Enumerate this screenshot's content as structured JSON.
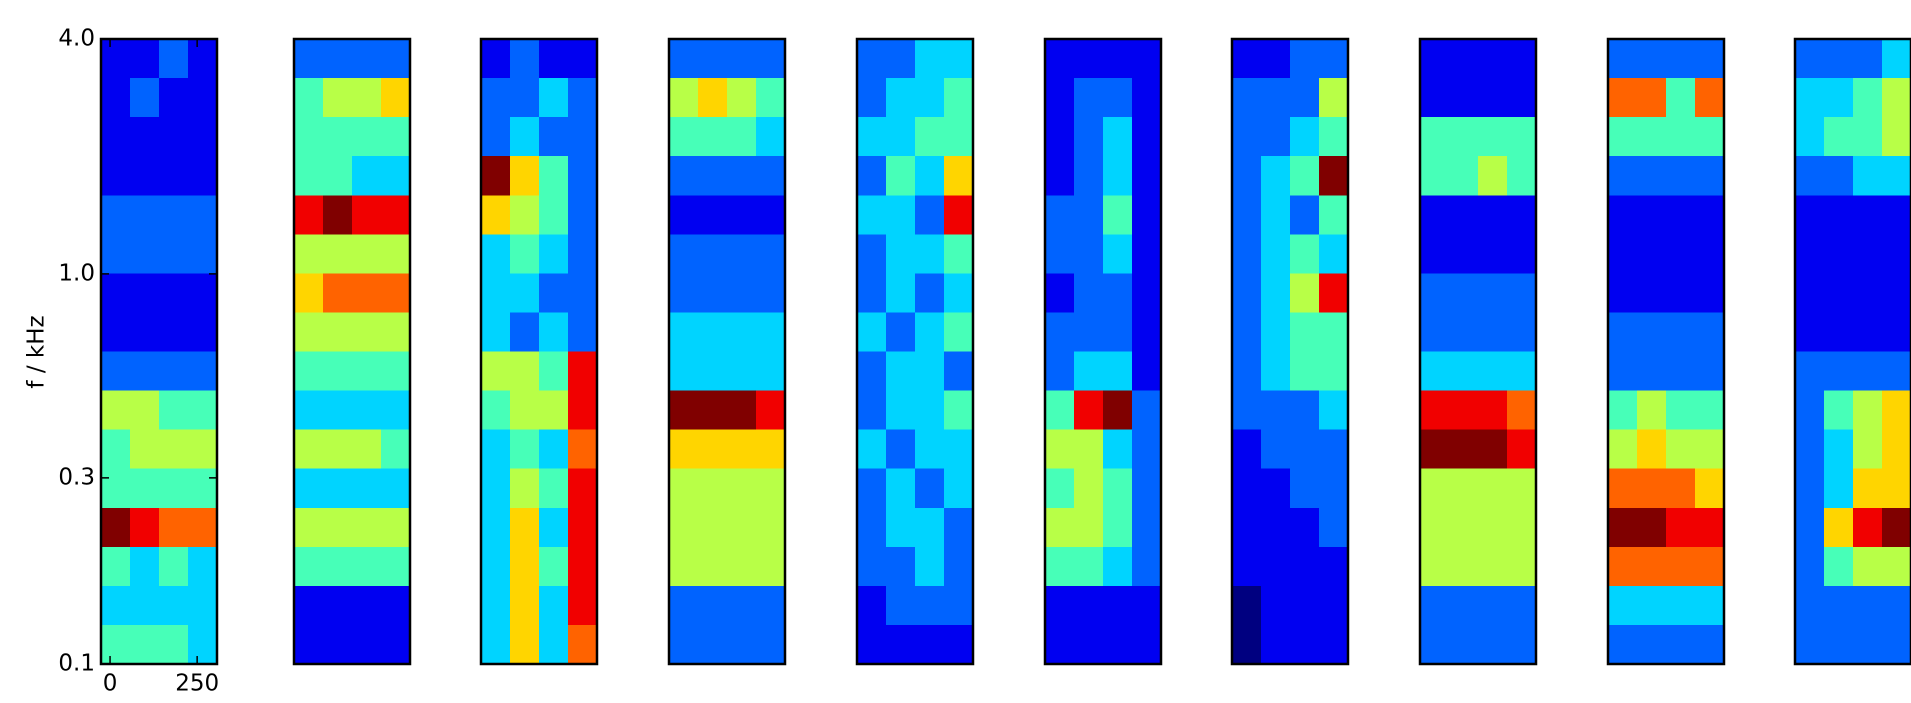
{
  "chart_data": {
    "type": "heatmap",
    "ylabel": "f / kHz",
    "ylog": true,
    "colormap": "jet",
    "zlim": [
      0,
      9
    ],
    "ylim": [
      0.1,
      4
    ],
    "yticks": [
      0.1,
      0.3,
      {
        "value": 1,
        "label": "1.0"
      },
      {
        "value": 4,
        "label": "4.0"
      }
    ],
    "xlim": [
      -26,
      307
    ],
    "xticks": [
      0,
      250
    ],
    "panels": [
      {
        "values": [
          [
            1,
            1,
            2,
            1
          ],
          [
            1,
            2,
            1,
            1
          ],
          [
            1,
            1,
            1,
            1
          ],
          [
            1,
            1,
            1,
            1
          ],
          [
            2,
            2,
            2,
            2
          ],
          [
            2,
            2,
            2,
            2
          ],
          [
            1,
            1,
            1,
            1
          ],
          [
            1,
            1,
            1,
            1
          ],
          [
            2,
            2,
            2,
            2
          ],
          [
            5,
            5,
            4,
            4
          ],
          [
            4,
            5,
            5,
            5
          ],
          [
            4,
            4,
            4,
            4
          ],
          [
            9,
            8,
            7,
            7
          ],
          [
            4,
            3,
            4,
            3
          ],
          [
            3,
            3,
            3,
            3
          ],
          [
            4,
            4,
            4,
            3
          ]
        ]
      },
      {
        "values": [
          [
            2,
            2,
            2,
            2
          ],
          [
            4,
            5,
            5,
            6
          ],
          [
            4,
            4,
            4,
            4
          ],
          [
            4,
            4,
            3,
            3
          ],
          [
            8,
            9,
            8,
            8
          ],
          [
            5,
            5,
            5,
            5
          ],
          [
            6,
            7,
            7,
            7
          ],
          [
            5,
            5,
            5,
            5
          ],
          [
            4,
            4,
            4,
            4
          ],
          [
            3,
            3,
            3,
            3
          ],
          [
            5,
            5,
            5,
            4
          ],
          [
            3,
            3,
            3,
            3
          ],
          [
            5,
            5,
            5,
            5
          ],
          [
            4,
            4,
            4,
            4
          ],
          [
            1,
            1,
            1,
            1
          ],
          [
            1,
            1,
            1,
            1
          ]
        ]
      },
      {
        "values": [
          [
            1,
            2,
            1,
            1
          ],
          [
            2,
            2,
            3,
            2
          ],
          [
            2,
            3,
            2,
            2
          ],
          [
            9,
            6,
            4,
            2
          ],
          [
            6,
            5,
            4,
            2
          ],
          [
            3,
            4,
            3,
            2
          ],
          [
            3,
            3,
            2,
            2
          ],
          [
            3,
            2,
            3,
            2
          ],
          [
            5,
            5,
            4,
            8
          ],
          [
            4,
            5,
            5,
            8
          ],
          [
            3,
            4,
            3,
            7
          ],
          [
            3,
            5,
            4,
            8
          ],
          [
            3,
            6,
            3,
            8
          ],
          [
            3,
            6,
            4,
            8
          ],
          [
            3,
            6,
            3,
            8
          ],
          [
            3,
            6,
            3,
            7
          ]
        ]
      },
      {
        "values": [
          [
            2,
            2,
            2,
            2
          ],
          [
            5,
            6,
            5,
            4
          ],
          [
            4,
            4,
            4,
            3
          ],
          [
            2,
            2,
            2,
            2
          ],
          [
            1,
            1,
            1,
            1
          ],
          [
            2,
            2,
            2,
            2
          ],
          [
            2,
            2,
            2,
            2
          ],
          [
            3,
            3,
            3,
            3
          ],
          [
            3,
            3,
            3,
            3
          ],
          [
            9,
            9,
            9,
            8
          ],
          [
            6,
            6,
            6,
            6
          ],
          [
            5,
            5,
            5,
            5
          ],
          [
            5,
            5,
            5,
            5
          ],
          [
            5,
            5,
            5,
            5
          ],
          [
            2,
            2,
            2,
            2
          ],
          [
            2,
            2,
            2,
            2
          ]
        ]
      },
      {
        "values": [
          [
            2,
            2,
            3,
            3
          ],
          [
            2,
            3,
            3,
            4
          ],
          [
            3,
            3,
            4,
            4
          ],
          [
            2,
            4,
            3,
            6
          ],
          [
            3,
            3,
            2,
            8
          ],
          [
            2,
            3,
            3,
            4
          ],
          [
            2,
            3,
            2,
            3
          ],
          [
            3,
            2,
            3,
            4
          ],
          [
            2,
            3,
            3,
            2
          ],
          [
            2,
            3,
            3,
            4
          ],
          [
            3,
            2,
            3,
            3
          ],
          [
            2,
            3,
            2,
            3
          ],
          [
            2,
            3,
            3,
            2
          ],
          [
            2,
            2,
            3,
            2
          ],
          [
            1,
            2,
            2,
            2
          ],
          [
            1,
            1,
            1,
            1
          ]
        ]
      },
      {
        "values": [
          [
            1,
            1,
            1,
            1
          ],
          [
            1,
            2,
            2,
            1
          ],
          [
            1,
            2,
            3,
            1
          ],
          [
            1,
            2,
            3,
            1
          ],
          [
            2,
            2,
            4,
            1
          ],
          [
            2,
            2,
            3,
            1
          ],
          [
            1,
            2,
            2,
            1
          ],
          [
            2,
            2,
            2,
            1
          ],
          [
            2,
            3,
            3,
            1
          ],
          [
            4,
            8,
            9,
            2
          ],
          [
            5,
            5,
            3,
            2
          ],
          [
            4,
            5,
            4,
            2
          ],
          [
            5,
            5,
            4,
            2
          ],
          [
            4,
            4,
            3,
            2
          ],
          [
            1,
            1,
            1,
            1
          ],
          [
            1,
            1,
            1,
            1
          ]
        ]
      },
      {
        "values": [
          [
            1,
            1,
            2,
            2
          ],
          [
            2,
            2,
            2,
            5
          ],
          [
            2,
            2,
            3,
            4
          ],
          [
            2,
            3,
            4,
            9
          ],
          [
            2,
            3,
            2,
            4
          ],
          [
            2,
            3,
            4,
            3
          ],
          [
            2,
            3,
            5,
            8
          ],
          [
            2,
            3,
            4,
            4
          ],
          [
            2,
            3,
            4,
            4
          ],
          [
            2,
            2,
            2,
            3
          ],
          [
            1,
            2,
            2,
            2
          ],
          [
            1,
            1,
            2,
            2
          ],
          [
            1,
            1,
            1,
            2
          ],
          [
            1,
            1,
            1,
            1
          ],
          [
            0,
            1,
            1,
            1
          ],
          [
            0,
            1,
            1,
            1
          ]
        ]
      },
      {
        "values": [
          [
            1,
            1,
            1,
            1
          ],
          [
            1,
            1,
            1,
            1
          ],
          [
            4,
            4,
            4,
            4
          ],
          [
            4,
            4,
            5,
            4
          ],
          [
            1,
            1,
            1,
            1
          ],
          [
            1,
            1,
            1,
            1
          ],
          [
            2,
            2,
            2,
            2
          ],
          [
            2,
            2,
            2,
            2
          ],
          [
            3,
            3,
            3,
            3
          ],
          [
            8,
            8,
            8,
            7
          ],
          [
            9,
            9,
            9,
            8
          ],
          [
            5,
            5,
            5,
            5
          ],
          [
            5,
            5,
            5,
            5
          ],
          [
            5,
            5,
            5,
            5
          ],
          [
            2,
            2,
            2,
            2
          ],
          [
            2,
            2,
            2,
            2
          ]
        ]
      },
      {
        "values": [
          [
            2,
            2,
            2,
            2
          ],
          [
            7,
            7,
            4,
            7
          ],
          [
            4,
            4,
            4,
            4
          ],
          [
            2,
            2,
            2,
            2
          ],
          [
            1,
            1,
            1,
            1
          ],
          [
            1,
            1,
            1,
            1
          ],
          [
            1,
            1,
            1,
            1
          ],
          [
            2,
            2,
            2,
            2
          ],
          [
            2,
            2,
            2,
            2
          ],
          [
            4,
            5,
            4,
            4
          ],
          [
            5,
            6,
            5,
            5
          ],
          [
            7,
            7,
            7,
            6
          ],
          [
            9,
            9,
            8,
            8
          ],
          [
            7,
            7,
            7,
            7
          ],
          [
            3,
            3,
            3,
            3
          ],
          [
            2,
            2,
            2,
            2
          ]
        ]
      },
      {
        "values": [
          [
            2,
            2,
            2,
            3
          ],
          [
            3,
            3,
            4,
            5
          ],
          [
            3,
            4,
            4,
            5
          ],
          [
            2,
            2,
            3,
            3
          ],
          [
            1,
            1,
            1,
            1
          ],
          [
            1,
            1,
            1,
            1
          ],
          [
            1,
            1,
            1,
            1
          ],
          [
            1,
            1,
            1,
            1
          ],
          [
            2,
            2,
            2,
            2
          ],
          [
            2,
            4,
            5,
            6
          ],
          [
            2,
            3,
            5,
            6
          ],
          [
            2,
            3,
            6,
            6
          ],
          [
            2,
            6,
            8,
            9
          ],
          [
            2,
            4,
            5,
            5
          ],
          [
            2,
            2,
            2,
            2
          ],
          [
            2,
            2,
            2,
            2
          ]
        ]
      }
    ]
  }
}
